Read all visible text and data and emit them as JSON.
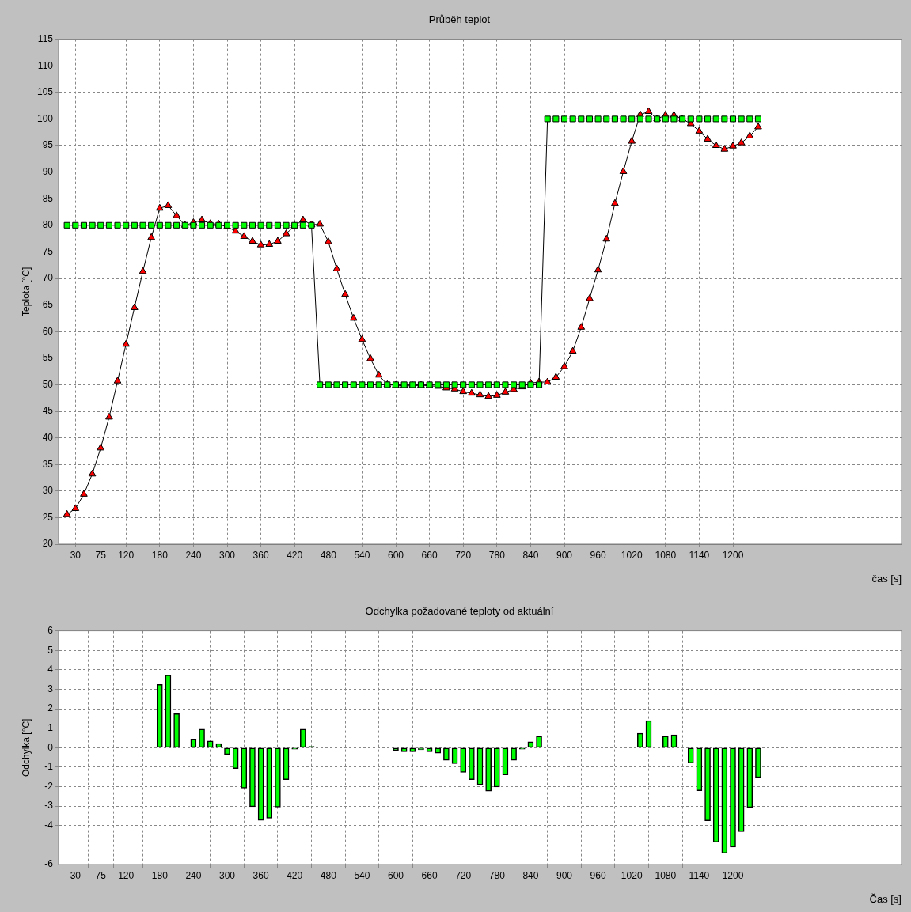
{
  "chart_data": [
    {
      "type": "line",
      "title": "Průběh teplot",
      "xlabel": "čas [s]",
      "ylabel": "Teplota [°C]",
      "x": [
        15,
        30,
        45,
        60,
        75,
        90,
        105,
        120,
        135,
        150,
        165,
        180,
        195,
        210,
        225,
        240,
        255,
        270,
        285,
        300,
        315,
        330,
        345,
        360,
        375,
        390,
        405,
        420,
        435,
        450,
        465,
        480,
        495,
        510,
        525,
        540,
        555,
        570,
        585,
        600,
        615,
        630,
        645,
        660,
        675,
        690,
        705,
        720,
        735,
        750,
        765,
        780,
        795,
        810,
        825,
        840,
        855,
        870,
        885,
        900,
        915,
        930,
        945,
        960,
        975,
        990,
        1005,
        1020,
        1035,
        1050,
        1065,
        1080,
        1095,
        1110,
        1125,
        1140,
        1155,
        1170,
        1185,
        1200,
        1215,
        1230,
        1245
      ],
      "series": [
        {
          "color": "#00ff00",
          "marker": "square",
          "values": [
            80,
            80,
            80,
            80,
            80,
            80,
            80,
            80,
            80,
            80,
            80,
            80,
            80,
            80,
            80,
            80,
            80,
            80,
            80,
            80,
            80,
            80,
            80,
            80,
            80,
            80,
            80,
            80,
            80,
            80,
            50,
            50,
            50,
            50,
            50,
            50,
            50,
            50,
            50,
            50,
            50,
            50,
            50,
            50,
            50,
            50,
            50,
            50,
            50,
            50,
            50,
            50,
            50,
            50,
            50,
            50,
            50,
            100,
            100,
            100,
            100,
            100,
            100,
            100,
            100,
            100,
            100,
            100,
            100,
            100,
            100,
            100,
            100,
            100,
            100,
            100,
            100,
            100,
            100,
            100,
            100,
            100,
            100
          ]
        },
        {
          "color": "#ff0000",
          "marker": "triangle",
          "values": [
            25.6,
            26.7,
            29.4,
            33.2,
            38.1,
            43.9,
            50.7,
            57.6,
            64.5,
            71.3,
            77.7,
            83.2,
            83.7,
            81.8,
            80.0,
            80.5,
            81.0,
            80.3,
            80.2,
            79.7,
            78.9,
            77.9,
            77.0,
            76.3,
            76.4,
            77.0,
            78.4,
            79.9,
            81.0,
            80.1,
            80.2,
            76.9,
            71.8,
            67.0,
            62.5,
            58.5,
            54.9,
            51.8,
            50.0,
            49.9,
            49.8,
            49.8,
            49.9,
            49.8,
            49.7,
            49.4,
            49.2,
            48.7,
            48.4,
            48.1,
            47.8,
            48.0,
            48.6,
            49.1,
            49.6,
            50.3,
            50.5,
            50.5,
            51.4,
            53.4,
            56.3,
            60.8,
            66.2,
            71.6,
            77.4,
            84.1,
            90.1,
            95.8,
            100.8,
            101.4,
            100.0,
            100.7,
            100.7,
            100.0,
            99.1,
            97.7,
            96.2,
            95.0,
            94.3,
            94.9,
            95.5,
            96.8,
            98.5
          ]
        }
      ],
      "xlim": [
        0,
        1500
      ],
      "xticks": [
        30,
        75,
        120,
        180,
        240,
        300,
        360,
        420,
        480,
        540,
        600,
        660,
        720,
        780,
        840,
        900,
        960,
        1020,
        1080,
        1140,
        1200
      ],
      "ylim": [
        20,
        115
      ],
      "yticks": [
        20,
        25,
        30,
        35,
        40,
        45,
        50,
        55,
        60,
        65,
        70,
        75,
        80,
        85,
        90,
        95,
        100,
        105,
        110,
        115
      ],
      "grid": true,
      "line_style": "solid"
    },
    {
      "type": "bar",
      "title": "Odchylka požadované teploty od aktuální",
      "xlabel": "Čas [s]",
      "ylabel": "Odchylka [°C]",
      "x": [
        180,
        195,
        210,
        225,
        240,
        255,
        270,
        285,
        300,
        315,
        330,
        345,
        360,
        375,
        390,
        405,
        420,
        435,
        450,
        585,
        600,
        615,
        630,
        645,
        660,
        675,
        690,
        705,
        720,
        735,
        750,
        765,
        780,
        795,
        810,
        825,
        840,
        855,
        1035,
        1050,
        1065,
        1080,
        1095,
        1110,
        1125,
        1140,
        1155,
        1170,
        1185,
        1200,
        1215,
        1230,
        1245
      ],
      "color": "#00ff00",
      "values": [
        3.25,
        3.73,
        1.75,
        0,
        0.45,
        0.95,
        0.34,
        0.21,
        -0.35,
        -1.07,
        -2.08,
        -3.03,
        -3.73,
        -3.62,
        -3.05,
        -1.64,
        -0.08,
        0.95,
        0.07,
        0,
        -0.14,
        -0.21,
        -0.21,
        -0.11,
        -0.21,
        -0.28,
        -0.64,
        -0.82,
        -1.26,
        -1.64,
        -1.9,
        -2.23,
        -2.02,
        -1.4,
        -0.64,
        -0.08,
        0.3,
        0.59,
        0.74,
        1.39,
        0,
        0.59,
        0.66,
        0,
        -0.79,
        -2.21,
        -3.75,
        -4.85,
        -5.42,
        -5.1,
        -4.31,
        -3.07,
        -1.53
      ],
      "xlim": [
        0,
        1500
      ],
      "xticks": [
        30,
        75,
        120,
        180,
        240,
        300,
        360,
        420,
        480,
        540,
        600,
        660,
        720,
        780,
        840,
        900,
        960,
        1020,
        1080,
        1140,
        1200
      ],
      "ylim": [
        -6,
        6
      ],
      "yticks": [
        6,
        5,
        4,
        3,
        2,
        1,
        0,
        -1,
        -2,
        -3,
        -4,
        -6
      ],
      "grid": true
    }
  ]
}
